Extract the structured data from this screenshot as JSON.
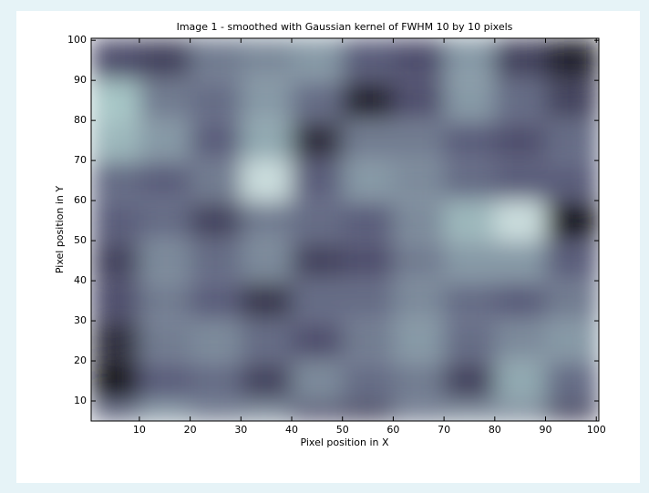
{
  "chart_data": {
    "type": "heatmap",
    "title": "Image 1 - smoothed with Gaussian kernel of FWHM 10 by 10 pixels",
    "xlabel": "Pixel position in X",
    "ylabel": "Pixel position in Y",
    "x": [
      5,
      15,
      25,
      35,
      45,
      55,
      65,
      75,
      85,
      95
    ],
    "y": [
      95,
      85,
      75,
      65,
      55,
      45,
      35,
      25,
      15,
      5
    ],
    "z": [
      [
        0.35,
        0.3,
        0.5,
        0.55,
        0.6,
        0.4,
        0.35,
        0.6,
        0.3,
        0.15
      ],
      [
        0.75,
        0.5,
        0.45,
        0.6,
        0.45,
        0.15,
        0.35,
        0.6,
        0.45,
        0.3
      ],
      [
        0.7,
        0.6,
        0.4,
        0.65,
        0.2,
        0.5,
        0.5,
        0.4,
        0.35,
        0.45
      ],
      [
        0.45,
        0.4,
        0.5,
        0.85,
        0.4,
        0.6,
        0.55,
        0.45,
        0.4,
        0.4
      ],
      [
        0.4,
        0.45,
        0.3,
        0.5,
        0.45,
        0.4,
        0.55,
        0.7,
        0.85,
        0.1
      ],
      [
        0.3,
        0.55,
        0.45,
        0.55,
        0.3,
        0.35,
        0.5,
        0.6,
        0.6,
        0.4
      ],
      [
        0.35,
        0.5,
        0.4,
        0.25,
        0.45,
        0.45,
        0.55,
        0.45,
        0.4,
        0.5
      ],
      [
        0.2,
        0.5,
        0.55,
        0.45,
        0.35,
        0.5,
        0.6,
        0.45,
        0.55,
        0.6
      ],
      [
        0.1,
        0.4,
        0.45,
        0.3,
        0.55,
        0.45,
        0.5,
        0.3,
        0.65,
        0.45
      ],
      [
        0.45,
        0.6,
        0.5,
        0.55,
        0.35,
        0.3,
        0.5,
        0.55,
        0.55,
        0.3
      ]
    ],
    "colormap": "bone",
    "xlim": [
      0.5,
      100.5
    ],
    "xticks": [
      10,
      20,
      30,
      40,
      50,
      60,
      70,
      80,
      90,
      100
    ],
    "ylim": [
      5,
      100.5
    ],
    "yticks": [
      10,
      20,
      30,
      40,
      50,
      60,
      70,
      80,
      90,
      100
    ]
  }
}
